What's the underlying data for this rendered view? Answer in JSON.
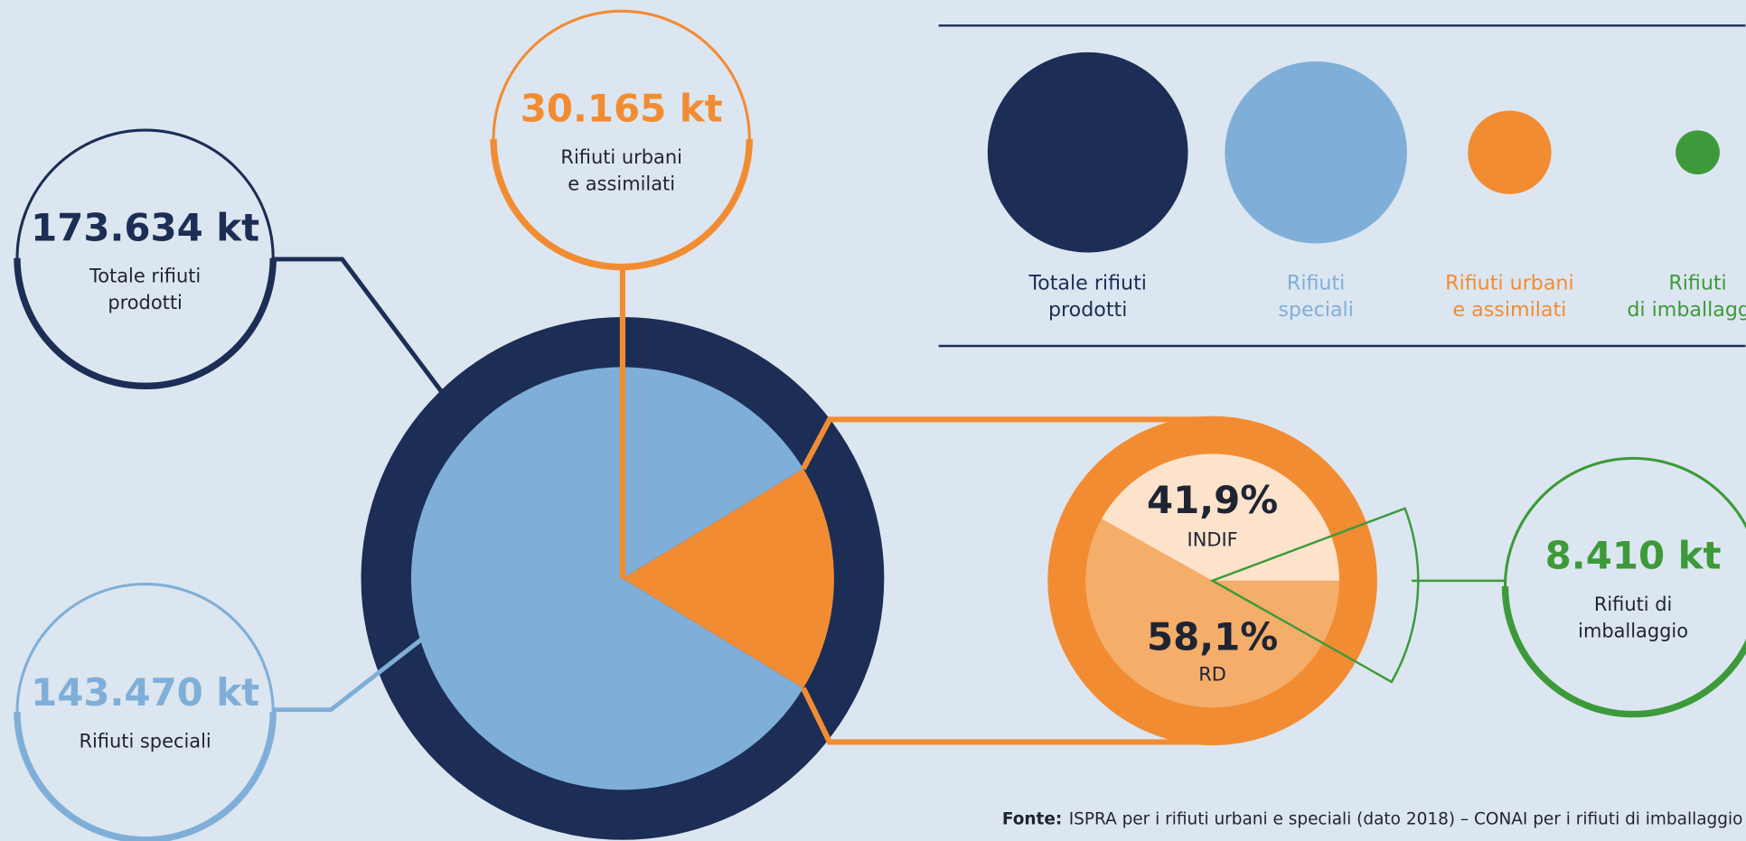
{
  "bubbles": [
    {
      "value": 173634,
      "label": "173.634 kt",
      "caption": [
        "Totale rifiuti",
        "prodotti"
      ]
    },
    {
      "value": 143470,
      "label": "143.470 kt",
      "caption": [
        "Rifiuti speciali"
      ]
    },
    {
      "value": 30165,
      "label": "30.165 kt",
      "caption": [
        "Rifiuti urbani",
        "e assimilati"
      ]
    },
    {
      "value": 8410,
      "label": "8.410 kt",
      "caption": [
        "Rifiuti di",
        "imballaggio"
      ]
    }
  ],
  "legend": [
    [
      "Totale rifiuti",
      "prodotti"
    ],
    [
      "Rifiuti",
      "speciali"
    ],
    [
      "Rifiuti urbani",
      "e assimilati"
    ],
    [
      "Rifiuti",
      "di imballaggio"
    ]
  ],
  "split": [
    {
      "value": 41.9,
      "label": "41,9%",
      "name": "INDIF"
    },
    {
      "value": 58.1,
      "label": "58,1%",
      "name": "RD"
    }
  ],
  "source": {
    "label": "Fonte:",
    "text": "ISPRA per i rifiuti urbani e speciali (dato 2018) – CONAI per i rifiuti di imballaggio"
  }
}
